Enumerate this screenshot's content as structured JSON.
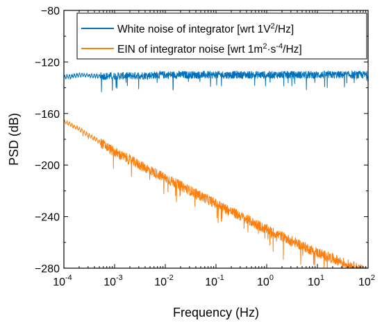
{
  "chart_data": {
    "type": "line",
    "xscale": "log",
    "xlim": [
      0.0001,
      100
    ],
    "ylim": [
      -280,
      -80
    ],
    "xlabel": "Frequency (Hz)",
    "ylabel": "PSD (dB)",
    "grid": false,
    "legend_position": "top-right",
    "x_ticks": [
      0.0001,
      0.001,
      0.01,
      0.1,
      1,
      10,
      100
    ],
    "x_tick_labels": [
      {
        "base": "10",
        "exp": "-4"
      },
      {
        "base": "10",
        "exp": "-3"
      },
      {
        "base": "10",
        "exp": "-2"
      },
      {
        "base": "10",
        "exp": "-1"
      },
      {
        "base": "10",
        "exp": "0"
      },
      {
        "base": "10",
        "exp": "1"
      },
      {
        "base": "10",
        "exp": "2"
      }
    ],
    "y_ticks": [
      -80,
      -120,
      -160,
      -200,
      -240,
      -280
    ],
    "y_tick_labels": [
      "−80",
      "−120",
      "−160",
      "−200",
      "−240",
      "−280"
    ],
    "series": [
      {
        "name": "White noise of integrator  [wrt 1V²/Hz]",
        "legend": {
          "pre": "White noise of integrator  [wrt 1V",
          "sup": "2",
          "post": "/Hz]"
        },
        "color": "#0072BD",
        "x": [
          0.0001,
          0.0002,
          0.0005,
          0.001,
          0.01,
          0.1,
          1,
          10,
          100
        ],
        "y": [
          -132,
          -130,
          -131,
          -131,
          -130,
          -130,
          -130,
          -130,
          -130
        ],
        "noise_band_db": 6
      },
      {
        "name": "EIN of integrator noise [wrt 1m²·s⁻⁴/Hz]",
        "legend": {
          "pre": "EIN of integrator noise [wrt 1m",
          "sup": "2",
          "mid": "·s",
          "sup2": "-4",
          "post": "/Hz]"
        },
        "color": "#FF7F0E",
        "x": [
          0.0001,
          0.0002,
          0.0005,
          0.001,
          0.01,
          0.1,
          1,
          10,
          100
        ],
        "y": [
          -166,
          -172,
          -182,
          -190,
          -210,
          -230,
          -250,
          -268,
          -283
        ],
        "noise_band_db": 8
      }
    ]
  }
}
